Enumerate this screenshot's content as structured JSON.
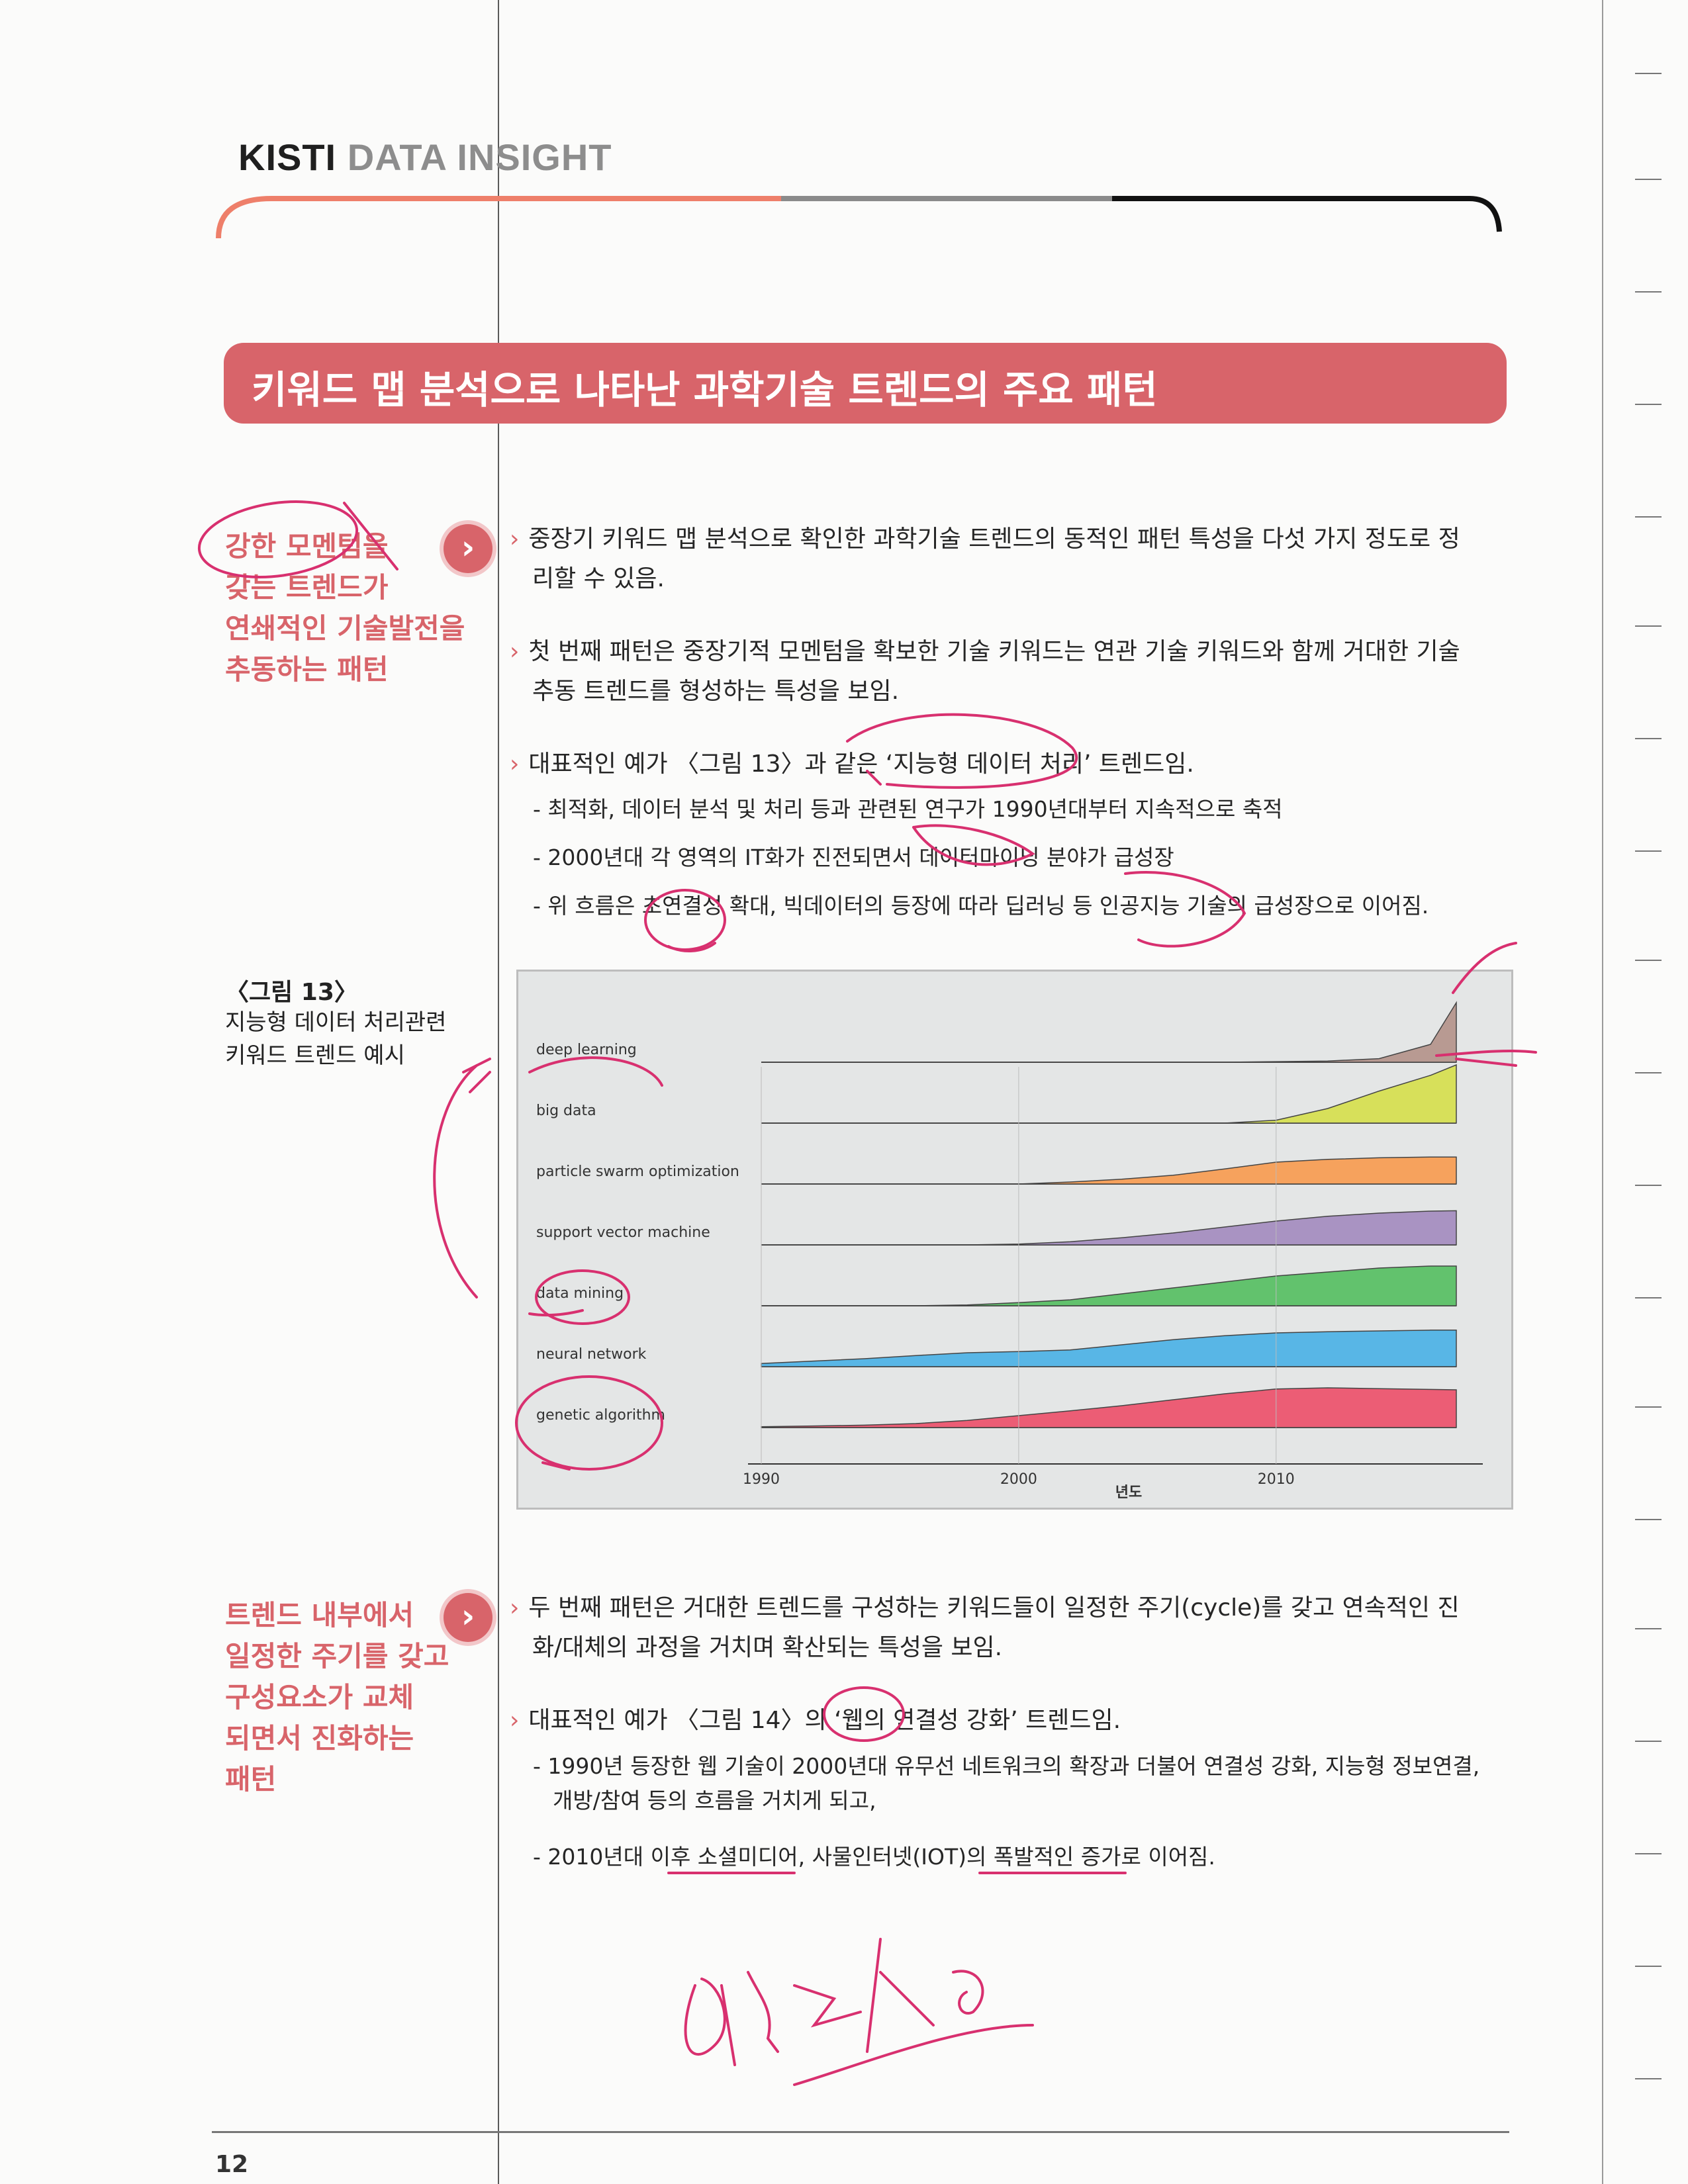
{
  "header": {
    "brand_primary": "KISTI",
    "brand_secondary": "DATA INSIGHT",
    "colors": {
      "accent": "#d8646a",
      "grey": "#8d8d8d",
      "dark": "#1f1f1f"
    }
  },
  "section_title": "키워드 맵 분석으로 나타난 과학기술 트렌드의 주요 패턴",
  "pattern1": {
    "side_lines": [
      "강한 모멘텀을",
      "갖는 트렌드가",
      "연쇄적인 기술발전을",
      "추동하는 패턴"
    ],
    "para1_l1": "중장기 키워드 맵 분석으로 확인한 과학기술 트렌드의 동적인 패턴 특성을 다섯 가지 정도로 정",
    "para1_l2": "리할 수 있음.",
    "para2_l1": "첫 번째 패턴은 중장기적 모멘텀을 확보한 기술 키워드는 연관 기술 키워드와 함께 거대한 기술",
    "para2_l2": "추동 트렌드를 형성하는 특성을 보임.",
    "para3": "대표적인 예가 〈그림 13〉과 같은 ‘지능형 데이터 처리’ 트렌드임.",
    "bullets": [
      "- 최적화, 데이터 분석 및 처리 등과 관련된 연구가 1990년대부터 지속적으로 축적",
      "- 2000년대 각 영역의 IT화가 진전되면서 데이터마이닝 분야가 급성장",
      "- 위 흐름은 초연결성 확대, 빅데이터의 등장에 따라 딥러닝 등 인공지능 기술의 급성장으로 이어짐."
    ]
  },
  "figure13": {
    "caption_title": "〈그림 13〉",
    "caption_desc_l1": "지능형 데이터 처리관련",
    "caption_desc_l2": "키워드 트렌드 예시"
  },
  "chart_data": {
    "type": "area",
    "title": "",
    "xlabel": "년도",
    "ylabel": "",
    "xlim": [
      1990,
      2017
    ],
    "x_ticks": [
      "1990",
      "2000",
      "2010"
    ],
    "x": [
      1990,
      1992,
      1994,
      1996,
      1998,
      2000,
      2002,
      2004,
      2006,
      2008,
      2010,
      2012,
      2014,
      2016,
      2017
    ],
    "series": [
      {
        "name": "deep learning",
        "color": "#b89a92",
        "values": [
          0,
          0,
          0,
          0,
          0,
          0,
          0,
          0,
          0,
          0,
          0.01,
          0.02,
          0.06,
          0.3,
          1.0
        ]
      },
      {
        "name": "big data",
        "color": "#d7e05a",
        "values": [
          0,
          0,
          0,
          0,
          0,
          0,
          0,
          0,
          0,
          0,
          0.05,
          0.25,
          0.55,
          0.82,
          1.0
        ]
      },
      {
        "name": "particle swarm optimization",
        "color": "#f6a25d",
        "values": [
          0,
          0,
          0,
          0,
          0,
          0,
          0.05,
          0.12,
          0.22,
          0.38,
          0.55,
          0.62,
          0.66,
          0.68,
          0.68
        ]
      },
      {
        "name": "support vector machine",
        "color": "#a993c2",
        "values": [
          0,
          0,
          0,
          0,
          0,
          0.02,
          0.08,
          0.18,
          0.3,
          0.45,
          0.6,
          0.72,
          0.8,
          0.85,
          0.86
        ]
      },
      {
        "name": "data mining",
        "color": "#62c26d",
        "values": [
          0,
          0,
          0,
          0,
          0.02,
          0.08,
          0.15,
          0.3,
          0.45,
          0.6,
          0.75,
          0.85,
          0.95,
          1.0,
          1.0
        ]
      },
      {
        "name": "neural network",
        "color": "#58b6e6",
        "values": [
          0.08,
          0.14,
          0.2,
          0.28,
          0.35,
          0.38,
          0.42,
          0.55,
          0.68,
          0.78,
          0.85,
          0.88,
          0.9,
          0.92,
          0.92
        ]
      },
      {
        "name": "genetic algorithm",
        "color": "#ec5d75",
        "values": [
          0.02,
          0.04,
          0.06,
          0.1,
          0.18,
          0.3,
          0.42,
          0.55,
          0.7,
          0.85,
          0.97,
          1.0,
          0.98,
          0.96,
          0.95
        ]
      }
    ]
  },
  "pattern2": {
    "side_lines": [
      "트렌드 내부에서",
      "일정한 주기를 갖고",
      "구성요소가 교체",
      "되면서 진화하는",
      "패턴"
    ],
    "para1_l1": "두 번째 패턴은 거대한 트렌드를 구성하는 키워드들이 일정한 주기(cycle)를 갖고 연속적인 진",
    "para1_l2": "화/대체의 과정을 거치며 확산되는 특성을 보임.",
    "para2": "대표적인 예가 〈그림 14〉의 ‘웹의 연결성 강화’ 트렌드임.",
    "bullet1_l1": "- 1990년 등장한 웹 기술이 2000년대 유무선 네트워크의 확장과 더불어 연결성 강화, 지능형 정보연결,",
    "bullet1_l2": "개방/참여 등의 흐름을 거치게 되고,",
    "bullet2": "- 2010년대 이후 소셜미디어, 사물인터넷(IOT)의 폭발적인 증가로 이어짐."
  },
  "footer": {
    "page_number": "12"
  }
}
